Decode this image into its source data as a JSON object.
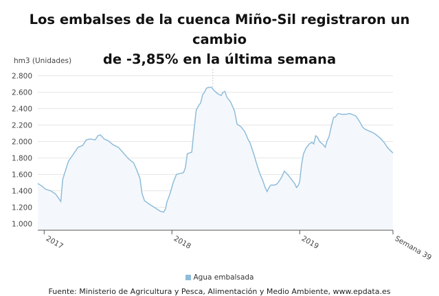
{
  "title_line1": "Los embalses de la cuenca Miño-Sil registraron un cambio",
  "title_line2": "de -3,85% en la última semana",
  "source": "Fuente: Ministerio de Agricultura y Pesca, Alimentación y Medio Ambiente, www.epdata.es",
  "colors": {
    "line": "#8fbcd9",
    "fill": "#f4f8fc",
    "grid": "#e6e6e6",
    "axis": "#555555",
    "marker": "#cccccc"
  },
  "chart_data": {
    "type": "area",
    "title": "Los embalses de la cuenca Miño-Sil registraron un cambio de -3,85% en la última semana",
    "ylabel": "hm3 (Unidades)",
    "ylim": [
      920,
      2880
    ],
    "yticks": [
      1000,
      1200,
      1400,
      1600,
      1800,
      2000,
      2200,
      2400,
      2600,
      2800
    ],
    "ytick_labels": [
      "1.000",
      "1.200",
      "1.400",
      "1.600",
      "1.800",
      "2.000",
      "2.200",
      "2.400",
      "2.600",
      "2.800"
    ],
    "xlim": [
      2016.95,
      2019.73
    ],
    "xticks": [
      {
        "x": 2017.0,
        "label": "2017"
      },
      {
        "x": 2018.0,
        "label": "2018"
      },
      {
        "x": 2019.0,
        "label": "2019"
      },
      {
        "x": 2019.73,
        "label": "Semana 39"
      }
    ],
    "marker_x": 2018.32,
    "legend_position": "bottom",
    "series": [
      {
        "name": "Agua embalsada",
        "points": [
          [
            2016.95,
            1490
          ],
          [
            2016.98,
            1460
          ],
          [
            2017.01,
            1420
          ],
          [
            2017.05,
            1400
          ],
          [
            2017.09,
            1360
          ],
          [
            2017.13,
            1270
          ],
          [
            2017.145,
            1540
          ],
          [
            2017.19,
            1760
          ],
          [
            2017.23,
            1850
          ],
          [
            2017.265,
            1930
          ],
          [
            2017.3,
            1950
          ],
          [
            2017.33,
            2020
          ],
          [
            2017.36,
            2030
          ],
          [
            2017.4,
            2020
          ],
          [
            2017.42,
            2070
          ],
          [
            2017.44,
            2080
          ],
          [
            2017.47,
            2030
          ],
          [
            2017.5,
            2010
          ],
          [
            2017.54,
            1960
          ],
          [
            2017.58,
            1930
          ],
          [
            2017.62,
            1860
          ],
          [
            2017.66,
            1790
          ],
          [
            2017.7,
            1740
          ],
          [
            2017.72,
            1670
          ],
          [
            2017.75,
            1550
          ],
          [
            2017.765,
            1370
          ],
          [
            2017.785,
            1280
          ],
          [
            2017.82,
            1240
          ],
          [
            2017.86,
            1200
          ],
          [
            2017.89,
            1170
          ],
          [
            2017.91,
            1150
          ],
          [
            2017.935,
            1140
          ],
          [
            2017.95,
            1180
          ],
          [
            2017.96,
            1260
          ],
          [
            2017.975,
            1320
          ],
          [
            2017.99,
            1390
          ],
          [
            2018.01,
            1500
          ],
          [
            2018.035,
            1600
          ],
          [
            2018.06,
            1610
          ],
          [
            2018.09,
            1620
          ],
          [
            2018.105,
            1680
          ],
          [
            2018.12,
            1850
          ],
          [
            2018.135,
            1860
          ],
          [
            2018.155,
            1870
          ],
          [
            2018.17,
            2100
          ],
          [
            2018.19,
            2380
          ],
          [
            2018.21,
            2440
          ],
          [
            2018.225,
            2470
          ],
          [
            2018.24,
            2570
          ],
          [
            2018.255,
            2600
          ],
          [
            2018.27,
            2650
          ],
          [
            2018.29,
            2660
          ],
          [
            2018.31,
            2660
          ],
          [
            2018.33,
            2620
          ],
          [
            2018.36,
            2580
          ],
          [
            2018.385,
            2560
          ],
          [
            2018.4,
            2600
          ],
          [
            2018.415,
            2610
          ],
          [
            2018.43,
            2540
          ],
          [
            2018.46,
            2480
          ],
          [
            2018.49,
            2370
          ],
          [
            2018.51,
            2210
          ],
          [
            2018.54,
            2180
          ],
          [
            2018.57,
            2120
          ],
          [
            2018.6,
            2010
          ],
          [
            2018.61,
            1990
          ],
          [
            2018.64,
            1850
          ],
          [
            2018.665,
            1720
          ],
          [
            2018.69,
            1600
          ],
          [
            2018.71,
            1530
          ],
          [
            2018.73,
            1440
          ],
          [
            2018.745,
            1390
          ],
          [
            2018.76,
            1440
          ],
          [
            2018.775,
            1470
          ],
          [
            2018.8,
            1470
          ],
          [
            2018.82,
            1480
          ],
          [
            2018.84,
            1520
          ],
          [
            2018.86,
            1570
          ],
          [
            2018.88,
            1640
          ],
          [
            2018.91,
            1590
          ],
          [
            2018.94,
            1530
          ],
          [
            2018.96,
            1490
          ],
          [
            2018.975,
            1440
          ],
          [
            2018.99,
            1470
          ],
          [
            2019.0,
            1510
          ],
          [
            2019.015,
            1720
          ],
          [
            2019.03,
            1850
          ],
          [
            2019.05,
            1920
          ],
          [
            2019.075,
            1970
          ],
          [
            2019.095,
            1990
          ],
          [
            2019.11,
            1970
          ],
          [
            2019.125,
            2070
          ],
          [
            2019.14,
            2050
          ],
          [
            2019.155,
            2000
          ],
          [
            2019.17,
            1980
          ],
          [
            2019.185,
            1960
          ],
          [
            2019.2,
            1930
          ],
          [
            2019.215,
            2010
          ],
          [
            2019.23,
            2060
          ],
          [
            2019.25,
            2200
          ],
          [
            2019.265,
            2290
          ],
          [
            2019.28,
            2300
          ],
          [
            2019.3,
            2340
          ],
          [
            2019.33,
            2330
          ],
          [
            2019.36,
            2330
          ],
          [
            2019.39,
            2340
          ],
          [
            2019.41,
            2330
          ],
          [
            2019.44,
            2310
          ],
          [
            2019.47,
            2240
          ],
          [
            2019.49,
            2180
          ],
          [
            2019.51,
            2150
          ],
          [
            2019.54,
            2130
          ],
          [
            2019.57,
            2110
          ],
          [
            2019.6,
            2080
          ],
          [
            2019.63,
            2040
          ],
          [
            2019.66,
            1990
          ],
          [
            2019.69,
            1920
          ],
          [
            2019.73,
            1860
          ]
        ]
      }
    ]
  }
}
